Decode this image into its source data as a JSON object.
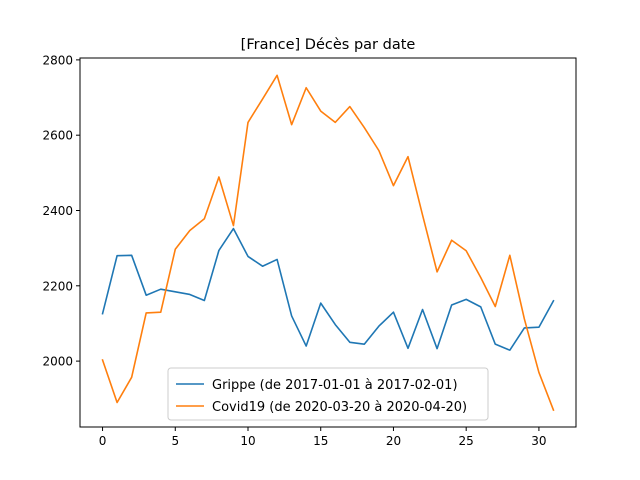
{
  "chart_data": {
    "type": "line",
    "title": "[France] Décès par date",
    "xlabel": "",
    "ylabel": "",
    "xlim": [
      -1.55,
      32.55
    ],
    "ylim": [
      1825,
      2805
    ],
    "xticks": [
      0,
      5,
      10,
      15,
      20,
      25,
      30
    ],
    "yticks": [
      2000,
      2200,
      2400,
      2600,
      2800
    ],
    "grid": false,
    "legend_position": "lower-center",
    "x": [
      0,
      1,
      2,
      3,
      4,
      5,
      6,
      7,
      8,
      9,
      10,
      11,
      12,
      13,
      14,
      15,
      16,
      17,
      18,
      19,
      20,
      21,
      22,
      23,
      24,
      25,
      26,
      27,
      28,
      29,
      30,
      31
    ],
    "series": [
      {
        "name": "Grippe (de 2017-01-01 à 2017-02-01)",
        "color": "#1f77b4",
        "values": [
          2126,
          2280,
          2281,
          2175,
          2191,
          2184,
          2177,
          2161,
          2294,
          2352,
          2278,
          2252,
          2270,
          2120,
          2040,
          2154,
          2097,
          2050,
          2045,
          2093,
          2130,
          2034,
          2137,
          2033,
          2149,
          2164,
          2144,
          2045,
          2029,
          2088,
          2090,
          2160
        ]
      },
      {
        "name": "Covid19 (de 2020-03-20 à 2020-04-20)",
        "color": "#ff7f0e",
        "values": [
          2003,
          1890,
          1957,
          2128,
          2130,
          2297,
          2347,
          2378,
          2489,
          2360,
          2634,
          2696,
          2759,
          2628,
          2726,
          2664,
          2634,
          2676,
          2620,
          2559,
          2466,
          2543,
          2388,
          2237,
          2321,
          2293,
          2222,
          2145,
          2281,
          2112,
          1970,
          1870
        ]
      }
    ]
  }
}
